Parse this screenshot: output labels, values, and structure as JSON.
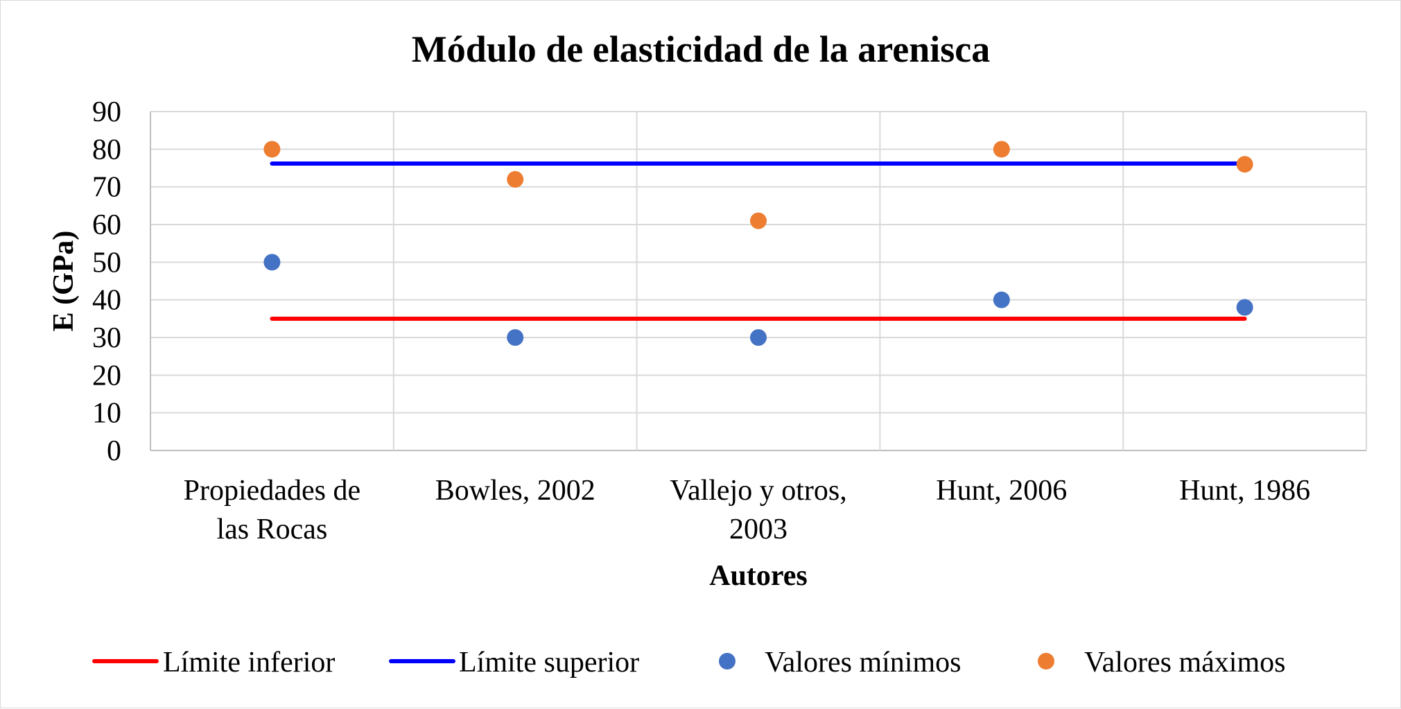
{
  "chart_data": {
    "type": "scatter",
    "title": "Módulo de elasticidad de la arenisca",
    "xlabel": "Autores",
    "ylabel": "E (GPa)",
    "ylim": [
      0,
      90
    ],
    "yticks": [
      0,
      10,
      20,
      30,
      40,
      50,
      60,
      70,
      80,
      90
    ],
    "grid": true,
    "legend_position": "bottom",
    "categories": [
      [
        "Propiedades de",
        "las Rocas"
      ],
      [
        "Bowles, 2002"
      ],
      [
        "Vallejo y otros,",
        "2003"
      ],
      [
        "Hunt, 2006"
      ],
      [
        "Hunt, 1986"
      ]
    ],
    "series": [
      {
        "name": "Límite  inferior",
        "kind": "line",
        "color": "#ff0000",
        "values": [
          35,
          35,
          35,
          35,
          35
        ]
      },
      {
        "name": "Límite  superior",
        "kind": "line",
        "color": "#0000ff",
        "values": [
          76.2,
          76.2,
          76.2,
          76.2,
          76.2
        ]
      },
      {
        "name": "Valores mínimos",
        "kind": "marker",
        "color": "#4472c4",
        "values": [
          50,
          30,
          30,
          40,
          38
        ]
      },
      {
        "name": "Valores máximos",
        "kind": "marker",
        "color": "#ed7d31",
        "values": [
          80,
          72,
          61,
          80,
          76
        ]
      }
    ]
  }
}
